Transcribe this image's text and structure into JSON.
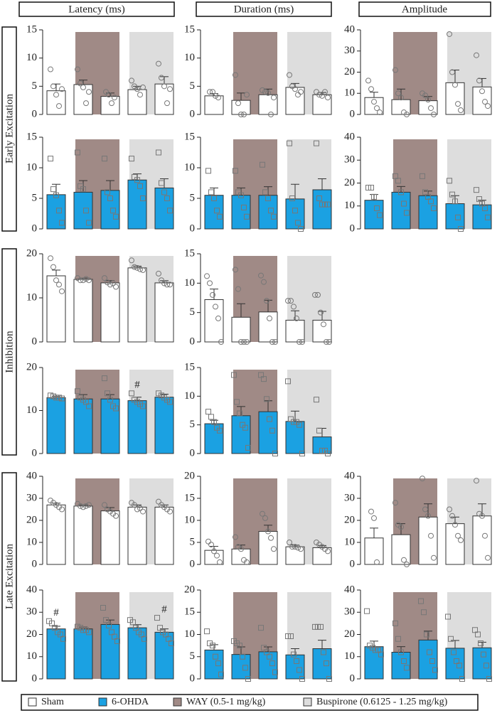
{
  "column_headers": [
    "Latency (ms)",
    "Duration (ms)",
    "Amplitude"
  ],
  "row_labels": [
    "Early Excitation",
    "Inhibition",
    "Late Excitation"
  ],
  "legend": [
    {
      "name": "Sham",
      "color": "#ffffff"
    },
    {
      "name": "6-OHDA",
      "color": "#1ba1e2"
    },
    {
      "name": "WAY (0.5-1 mg/kg)",
      "color": "#a08a86"
    },
    {
      "name": "Buspirone (0.6125 - 1.25 mg/kg)",
      "color": "#dddddd"
    }
  ],
  "chart_data": [
    {
      "type": "bar",
      "color": "#ffffff",
      "marker": "circle",
      "ylim": [
        0,
        15
      ],
      "yticks": [
        0,
        5,
        10,
        15
      ],
      "values": [
        4.2,
        5.3,
        3.2,
        4.4,
        5.4
      ],
      "errors": [
        1.2,
        0.8,
        0.6,
        0.6,
        1.3
      ],
      "points": [
        [
          8,
          5,
          3.5,
          1.5,
          4.5
        ],
        [
          8,
          5.5,
          4.8,
          2,
          4
        ],
        [
          4,
          3.5,
          2,
          3
        ],
        [
          6,
          5,
          4.5,
          3.5,
          4.8
        ],
        [
          9,
          6.5,
          5,
          2,
          4.5
        ]
      ]
    },
    {
      "type": "bar",
      "color": "#ffffff",
      "marker": "circle",
      "ylim": [
        0,
        15
      ],
      "yticks": [
        0,
        5,
        10,
        15
      ],
      "values": [
        3.3,
        2.5,
        3.5,
        4.8,
        3.5
      ],
      "errors": [
        0.4,
        1.3,
        1,
        0.7,
        0.4
      ],
      "points": [
        [
          4,
          4,
          3.3,
          3
        ],
        [
          7,
          2,
          0,
          0,
          3.5
        ],
        [
          4.3,
          4,
          3.8,
          0,
          3
        ],
        [
          7,
          5,
          4.5,
          3.5,
          4
        ],
        [
          4,
          3.5,
          3.3,
          4,
          3
        ]
      ]
    },
    {
      "type": "bar",
      "color": "#ffffff",
      "marker": "circle",
      "ylim": [
        0,
        40
      ],
      "yticks": [
        0,
        10,
        20,
        30,
        40
      ],
      "values": [
        8,
        7,
        6.5,
        15,
        13
      ],
      "errors": [
        2.5,
        5,
        2,
        6,
        4
      ],
      "points": [
        [
          16,
          12,
          6,
          3,
          1
        ],
        [
          21,
          10,
          8,
          1,
          0
        ],
        [
          10,
          9,
          7,
          3,
          0
        ],
        [
          38,
          20,
          14,
          5,
          2
        ],
        [
          28,
          16,
          11,
          6,
          4
        ]
      ]
    },
    {
      "type": "bar",
      "color": "#1ba1e2",
      "marker": "square",
      "ylim": [
        0,
        15
      ],
      "yticks": [
        0,
        5,
        10,
        15
      ],
      "values": [
        5.6,
        6,
        6.3,
        8,
        6.7
      ],
      "errors": [
        1.7,
        1.9,
        1.6,
        1,
        1.5
      ],
      "points": [
        [
          11.5,
          6.5,
          5.5,
          3,
          1
        ],
        [
          12.5,
          7,
          6.5,
          3,
          1
        ],
        [
          11.5,
          6,
          5,
          3,
          2
        ],
        [
          11.5,
          8.5,
          8,
          7,
          5
        ],
        [
          12.5,
          7.5,
          6,
          5,
          3
        ]
      ]
    },
    {
      "type": "bar",
      "color": "#1ba1e2",
      "marker": "square",
      "ylim": [
        0,
        15
      ],
      "yticks": [
        0,
        5,
        10,
        15
      ],
      "values": [
        5.5,
        5.5,
        5.5,
        4.9,
        6.4
      ],
      "errors": [
        1.2,
        1.2,
        1.4,
        2.4,
        1.8
      ],
      "points": [
        [
          9.5,
          6,
          5,
          3,
          2
        ],
        [
          9.5,
          6,
          5.5,
          3.5,
          2
        ],
        [
          10.5,
          6,
          5,
          3,
          2
        ],
        [
          14,
          5,
          3,
          1,
          0
        ],
        [
          14,
          5,
          4,
          4,
          4
        ]
      ]
    },
    {
      "type": "bar",
      "color": "#1ba1e2",
      "marker": "square",
      "ylim": [
        0,
        40
      ],
      "yticks": [
        0,
        10,
        20,
        30,
        40
      ],
      "values": [
        12.5,
        16,
        14.5,
        11,
        10.5
      ],
      "errors": [
        2.5,
        2.5,
        2,
        3.5,
        2
      ],
      "points": [
        [
          18,
          18,
          14,
          9,
          6
        ],
        [
          23,
          21,
          16,
          11,
          7
        ],
        [
          23,
          16,
          14,
          12,
          9
        ],
        [
          21,
          15,
          12,
          5,
          0
        ],
        [
          17,
          13,
          11,
          9,
          5
        ]
      ]
    },
    {
      "type": "bar",
      "color": "#ffffff",
      "marker": "circle",
      "ylim": [
        0,
        20
      ],
      "yticks": [
        0,
        10,
        20
      ],
      "values": [
        15,
        14.2,
        13.4,
        16.8,
        13.4
      ],
      "errors": [
        1.3,
        0.3,
        0.5,
        0.4,
        0.5
      ],
      "points": [
        [
          19,
          17,
          14,
          13,
          11.5
        ],
        [
          14.5,
          14,
          14,
          14.3,
          14
        ],
        [
          14.5,
          13.5,
          13,
          13.3,
          12.5
        ],
        [
          18.5,
          17,
          16.8,
          16.5,
          16.3
        ],
        [
          15.5,
          14,
          13.3,
          13,
          13
        ]
      ]
    },
    {
      "type": "bar",
      "color": "#ffffff",
      "marker": "circle",
      "ylim": [
        0,
        15
      ],
      "yticks": [
        0,
        5,
        10,
        15
      ],
      "values": [
        7.2,
        4.2,
        5.1,
        3.7,
        3.7
      ],
      "errors": [
        1.8,
        2.3,
        2,
        1.6,
        1.5
      ],
      "points": [
        [
          11.2,
          10,
          8,
          6,
          4,
          0
        ],
        [
          12.3,
          9,
          0,
          0,
          0
        ],
        [
          11.3,
          10.2,
          7,
          4,
          0,
          0
        ],
        [
          7,
          7,
          6,
          4,
          0,
          0
        ],
        [
          8,
          8,
          5,
          3,
          0,
          0
        ]
      ]
    },
    {
      "type": "bar",
      "color": "#1ba1e2",
      "marker": "square",
      "ylim": [
        0,
        20
      ],
      "yticks": [
        0,
        10,
        20
      ],
      "values": [
        13,
        12.7,
        12.7,
        12.3,
        13.1
      ],
      "errors": [
        0.3,
        1,
        1,
        0.8,
        0.7
      ],
      "points": [
        [
          13.5,
          13.3,
          13,
          13,
          12.8
        ],
        [
          14.5,
          13,
          12.5,
          12,
          11
        ],
        [
          17.5,
          14,
          12.5,
          11,
          10.5
        ],
        [
          14,
          12.5,
          12,
          11.5,
          11
        ],
        [
          14,
          13.5,
          13,
          12.5,
          12
        ]
      ],
      "annotations": [
        null,
        null,
        null,
        "#",
        null
      ]
    },
    {
      "type": "bar",
      "color": "#1ba1e2",
      "marker": "square",
      "ylim": [
        0,
        15
      ],
      "yticks": [
        0,
        5,
        10,
        15
      ],
      "values": [
        5.2,
        6.6,
        7.3,
        5.6,
        2.9
      ],
      "errors": [
        0.6,
        1.6,
        1.9,
        1.8,
        1.5
      ],
      "points": [
        [
          7.3,
          6.4,
          5.5,
          4.5,
          4
        ],
        [
          13.7,
          9,
          7,
          5,
          4.5,
          1
        ],
        [
          13.7,
          13,
          9.5,
          6,
          4,
          0
        ],
        [
          12.6,
          6,
          5.5,
          5.5,
          5,
          0
        ],
        [
          9.4,
          4,
          0.5,
          0.5,
          0
        ]
      ]
    },
    {
      "type": "bar",
      "color": "#ffffff",
      "marker": "circle",
      "ylim": [
        0,
        40
      ],
      "yticks": [
        0,
        10,
        20,
        30,
        40
      ],
      "values": [
        27,
        26.5,
        24.3,
        26,
        26
      ],
      "errors": [
        0.8,
        0.5,
        1.5,
        1,
        1
      ],
      "points": [
        [
          29,
          28,
          27,
          26,
          25
        ],
        [
          27.5,
          26.5,
          26,
          26.5,
          27
        ],
        [
          27,
          25,
          24,
          23,
          22
        ],
        [
          28,
          27,
          25,
          25.5,
          24
        ],
        [
          28.5,
          27,
          26,
          25,
          24
        ]
      ]
    },
    {
      "type": "bar",
      "color": "#ffffff",
      "marker": "circle",
      "ylim": [
        0,
        20
      ],
      "yticks": [
        0,
        5,
        10,
        15,
        20
      ],
      "values": [
        3.2,
        3.5,
        7.5,
        4,
        3.8
      ],
      "errors": [
        0.9,
        0.9,
        1.4,
        0.4,
        0.5
      ],
      "points": [
        [
          5.2,
          4.5,
          3,
          2,
          0.5
        ],
        [
          6.2,
          4,
          3.5,
          1,
          0.5
        ],
        [
          11.5,
          10.5,
          7.5,
          6,
          3.5
        ],
        [
          5,
          4,
          4,
          3.8,
          3.5
        ],
        [
          5,
          4.5,
          4,
          3.5,
          3
        ]
      ]
    },
    {
      "type": "bar",
      "color": "#ffffff",
      "marker": "circle",
      "ylim": [
        0,
        40
      ],
      "yticks": [
        0,
        10,
        20,
        30,
        40
      ],
      "values": [
        12,
        13.5,
        21.5,
        18.5,
        22
      ],
      "errors": [
        4.5,
        5,
        6,
        3,
        5.5
      ],
      "points": [
        [
          24,
          21,
          1
        ],
        [
          28,
          18,
          17,
          2,
          0
        ],
        [
          39,
          25,
          22,
          13,
          3
        ],
        [
          25,
          22,
          18,
          13,
          11
        ],
        [
          38,
          23,
          22,
          13,
          3
        ]
      ]
    },
    {
      "type": "bar",
      "color": "#1ba1e2",
      "marker": "square",
      "ylim": [
        0,
        40
      ],
      "yticks": [
        0,
        10,
        20,
        30,
        40
      ],
      "values": [
        22.5,
        22.5,
        24.5,
        23,
        21
      ],
      "errors": [
        1.2,
        0.8,
        2,
        1.4,
        1.5
      ],
      "points": [
        [
          26,
          25,
          23,
          21,
          20,
          18
        ],
        [
          23.5,
          23,
          22,
          22,
          21
        ],
        [
          32,
          26.5,
          24,
          21,
          19,
          17
        ],
        [
          26.5,
          25.5,
          23,
          21,
          20,
          18
        ],
        [
          27.5,
          23,
          21,
          20,
          18,
          16
        ]
      ],
      "annotations": [
        "#",
        null,
        null,
        null,
        "#"
      ]
    },
    {
      "type": "bar",
      "color": "#1ba1e2",
      "marker": "square",
      "ylim": [
        0,
        20
      ],
      "yticks": [
        0,
        5,
        10,
        15,
        20
      ],
      "values": [
        6.5,
        5.5,
        6.1,
        5.4,
        6.8
      ],
      "errors": [
        1.2,
        1.7,
        1.1,
        1.4,
        1.9
      ],
      "points": [
        [
          10.7,
          8,
          7.5,
          5,
          3.5,
          1
        ],
        [
          8.5,
          8,
          7.5,
          5,
          2.5,
          0
        ],
        [
          11.5,
          7,
          6,
          5,
          3.5,
          1.5
        ],
        [
          9.6,
          9.6,
          5.5,
          4,
          2,
          0
        ],
        [
          11.7,
          11.7,
          11.7,
          6,
          3.5,
          0
        ]
      ]
    },
    {
      "type": "bar",
      "color": "#1ba1e2",
      "marker": "square",
      "ylim": [
        0,
        40
      ],
      "yticks": [
        0,
        10,
        20,
        30,
        40
      ],
      "values": [
        14.5,
        12,
        17.5,
        13.8,
        14
      ],
      "errors": [
        2.5,
        2.5,
        4,
        3.5,
        2.5
      ],
      "points": [
        [
          30.5,
          15,
          14,
          13,
          13,
          11
        ],
        [
          25,
          18,
          12,
          8,
          5
        ],
        [
          35,
          30,
          20,
          12,
          8,
          4
        ],
        [
          28,
          18,
          12,
          8,
          6,
          0
        ],
        [
          22,
          20,
          16,
          11,
          6,
          0
        ]
      ]
    }
  ]
}
